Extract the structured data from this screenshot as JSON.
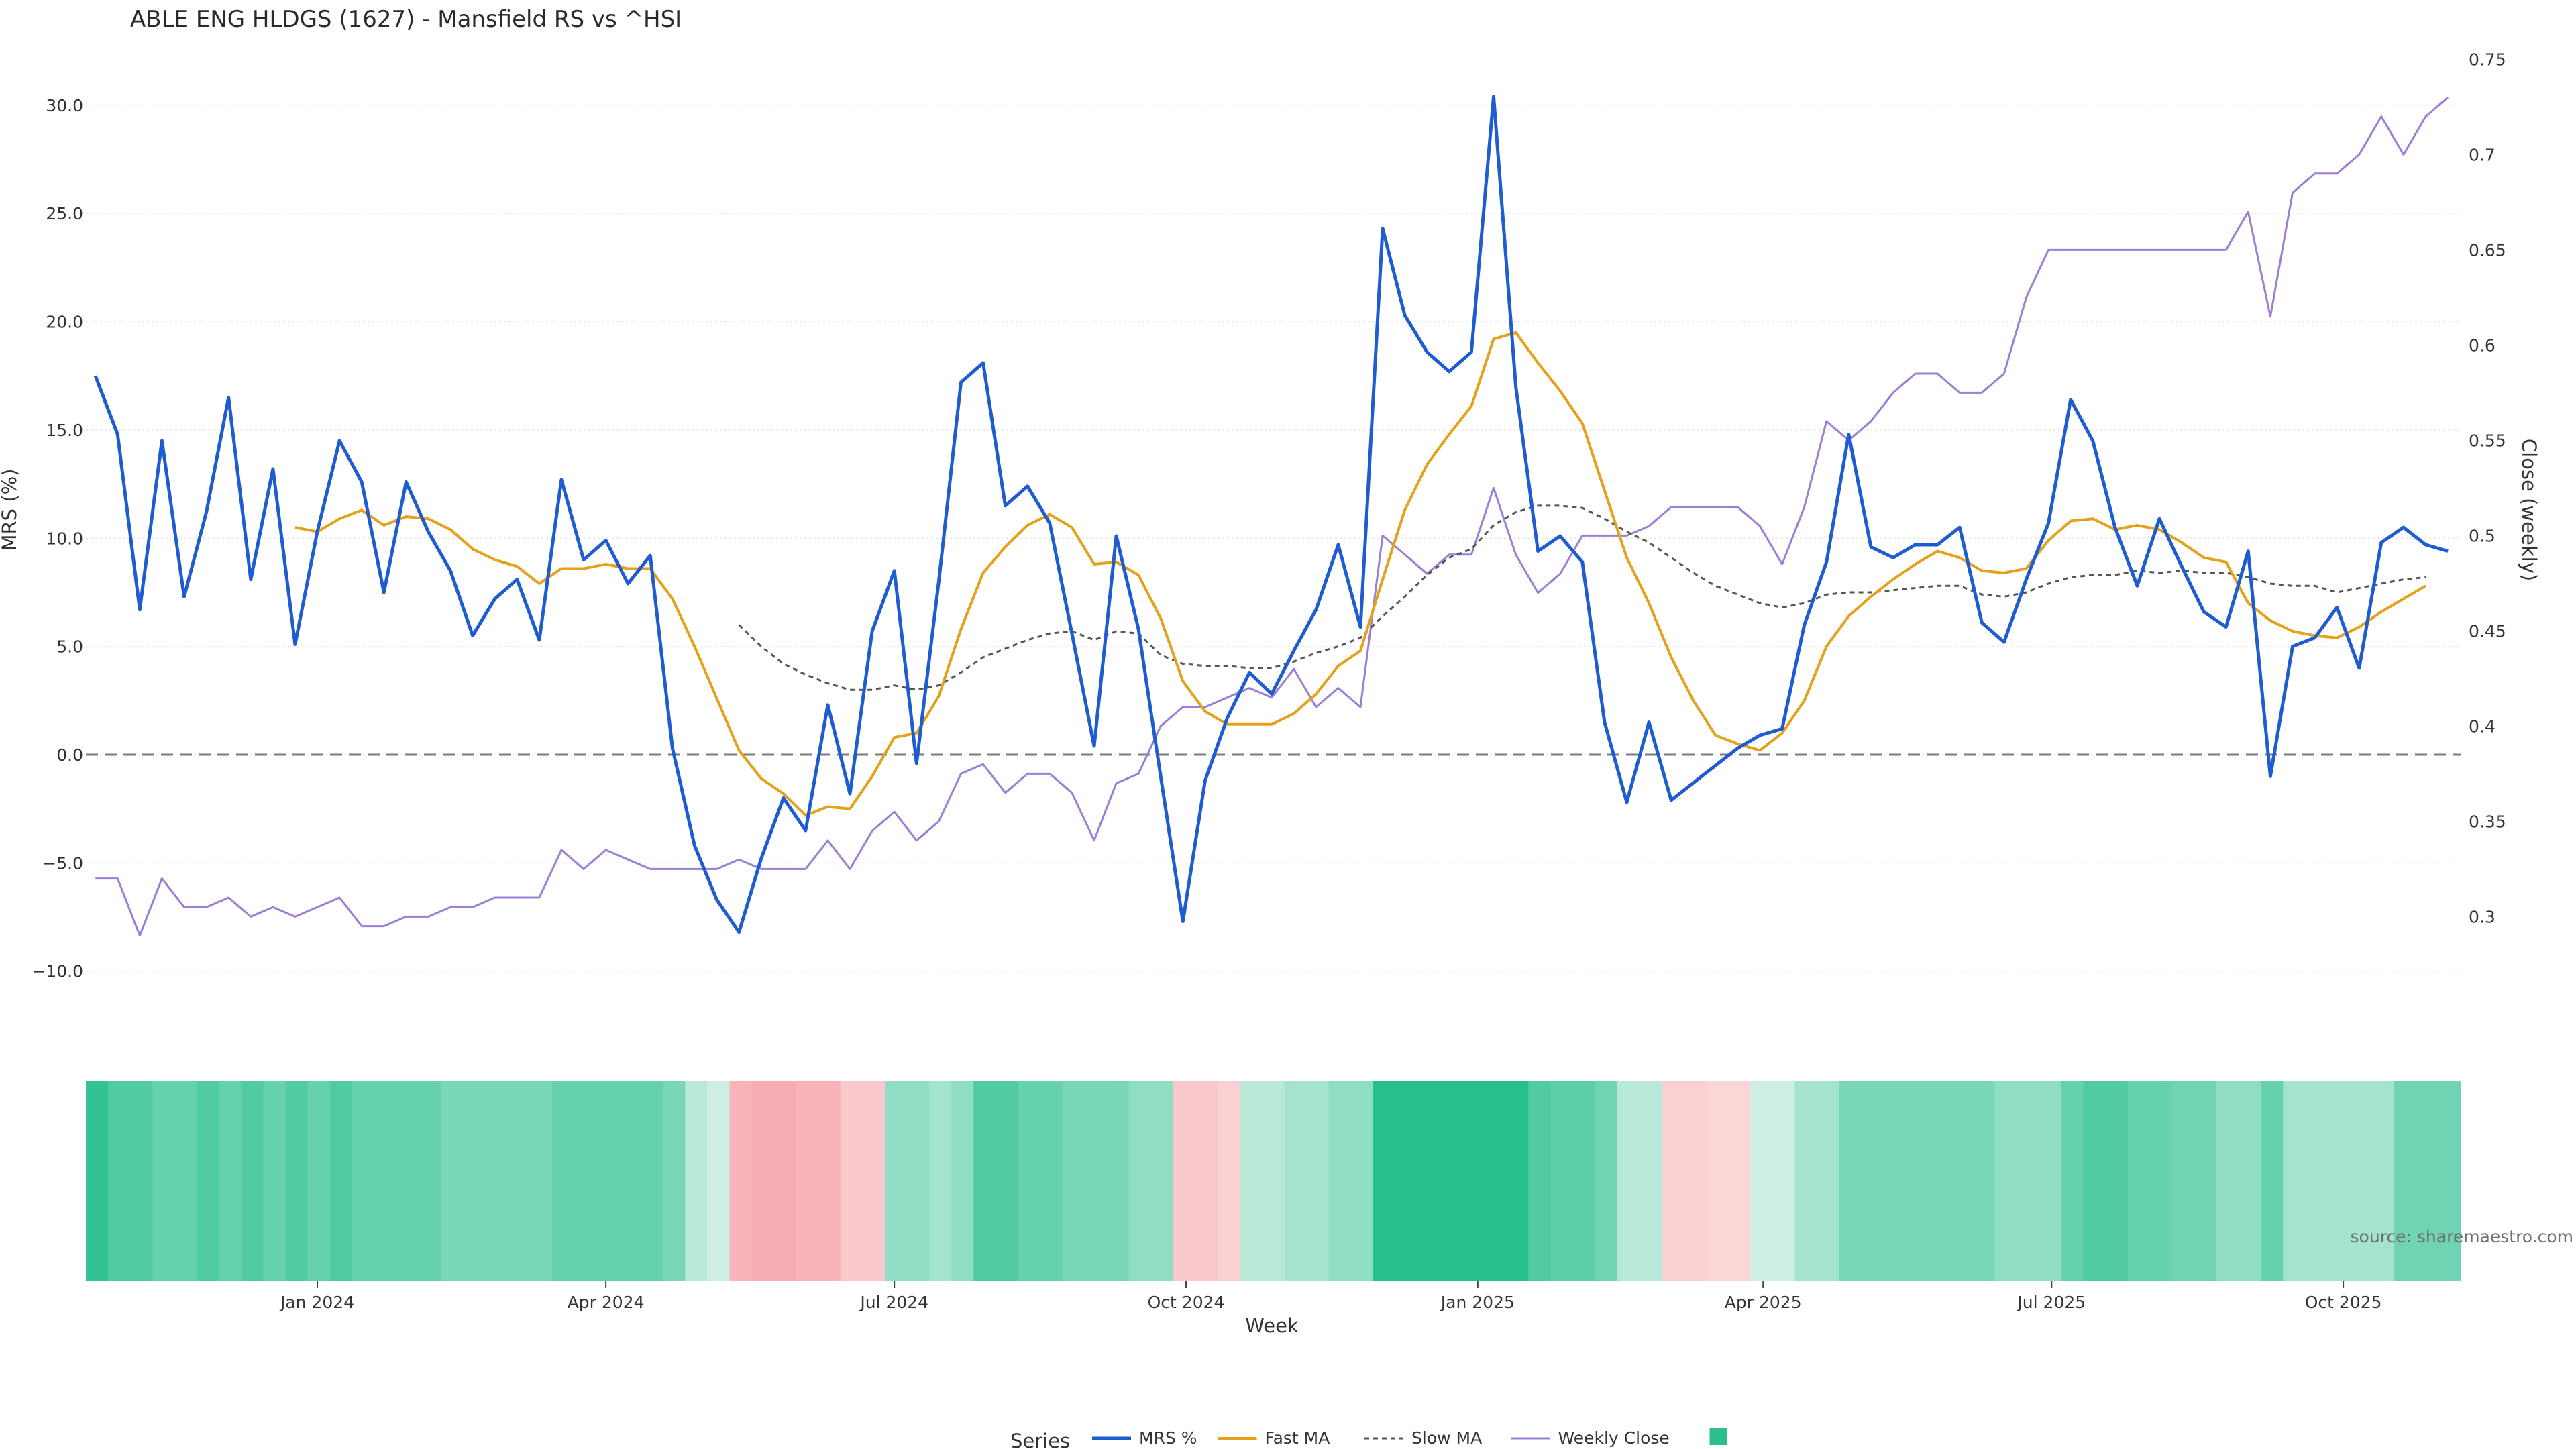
{
  "chart_data": {
    "type": "line",
    "title": "ABLE ENG HLDGS (1627) - Mansfield RS vs ^HSI",
    "xlabel": "Week",
    "ylabel": "MRS (%)",
    "y2label": "Close (weekly)",
    "ylim": [
      -11,
      33
    ],
    "y2lim": [
      0.26,
      0.76
    ],
    "y_ticks": [
      "30.0",
      "25.0",
      "20.0",
      "15.0",
      "10.0",
      "5.0",
      "0.0",
      "−5.0",
      "−10.0"
    ],
    "y_tick_values": [
      30,
      25,
      20,
      15,
      10,
      5,
      0,
      -5,
      -10
    ],
    "y2_ticks": [
      "0.75",
      "0.7",
      "0.65",
      "0.6",
      "0.55",
      "0.5",
      "0.45",
      "0.4",
      "0.35",
      "0.3"
    ],
    "y2_tick_values": [
      0.75,
      0.7,
      0.65,
      0.6,
      0.55,
      0.5,
      0.45,
      0.4,
      0.35,
      0.3
    ],
    "x_range": [
      "2023-10-20",
      "2025-11-07"
    ],
    "x_ticks": [
      {
        "label": "Jan 2024",
        "date": "2024-01-01"
      },
      {
        "label": "Apr 2024",
        "date": "2024-04-01"
      },
      {
        "label": "Jul 2024",
        "date": "2024-07-01"
      },
      {
        "label": "Oct 2024",
        "date": "2024-10-01"
      },
      {
        "label": "Jan 2025",
        "date": "2025-01-01"
      },
      {
        "label": "Apr 2025",
        "date": "2025-04-01"
      },
      {
        "label": "Jul 2025",
        "date": "2025-07-01"
      },
      {
        "label": "Oct 2025",
        "date": "2025-10-01"
      }
    ],
    "start_week": "2023-10-23",
    "grid": true,
    "legend_position": "bottom-center",
    "legend_title": "Series",
    "colors": {
      "mrs": "#1f5bd1",
      "fast": "#e3a21a",
      "slow": "#555555",
      "close": "#9b7fd4",
      "zero": "#7a7a7a",
      "heat_legend": "#2bbf8e"
    },
    "series": [
      {
        "name": "MRS %",
        "values": [
          17.5,
          14.8,
          6.7,
          14.5,
          7.3,
          11.2,
          16.5,
          8.1,
          13.2,
          5.1,
          10.3,
          14.5,
          12.6,
          7.5,
          12.6,
          10.3,
          8.5,
          5.5,
          7.2,
          8.1,
          5.3,
          12.7,
          9.0,
          9.9,
          7.9,
          9.2,
          0.3,
          -4.2,
          -6.7,
          -8.2,
          -4.8,
          -2.0,
          -3.5,
          2.3,
          -1.8,
          5.7,
          8.5,
          -0.4,
          8.0,
          17.2,
          18.1,
          11.5,
          12.4,
          10.7,
          5.6,
          0.4,
          10.1,
          5.8,
          -1.0,
          -7.7,
          -1.2,
          1.7,
          3.8,
          2.8,
          4.8,
          6.7,
          9.7,
          5.9,
          24.3,
          20.3,
          18.6,
          17.7,
          18.6,
          30.4,
          17.0,
          9.4,
          10.1,
          8.9,
          1.5,
          -2.2,
          1.5,
          -2.1,
          -1.3,
          -0.5,
          0.3,
          0.9,
          1.2,
          6.0,
          8.9,
          14.8,
          9.6,
          9.1,
          9.7,
          9.7,
          10.5,
          6.1,
          5.2,
          8.1,
          10.7,
          16.4,
          14.5,
          10.5,
          7.8,
          10.9,
          8.7,
          6.6,
          5.9,
          9.4,
          -1.0,
          5.0,
          5.4,
          6.8,
          4.0,
          9.8,
          10.5,
          9.7,
          9.4
        ]
      },
      {
        "name": "Fast MA",
        "values": [
          null,
          null,
          null,
          null,
          null,
          null,
          null,
          null,
          null,
          10.5,
          10.3,
          10.9,
          11.3,
          10.6,
          11.0,
          10.9,
          10.4,
          9.5,
          9.0,
          8.7,
          7.9,
          8.6,
          8.6,
          8.8,
          8.6,
          8.6,
          7.2,
          5.0,
          2.6,
          0.2,
          -1.1,
          -1.8,
          -2.8,
          -2.4,
          -2.5,
          -1.0,
          0.8,
          1.0,
          2.7,
          5.8,
          8.4,
          9.6,
          10.6,
          11.1,
          10.5,
          8.8,
          8.9,
          8.3,
          6.3,
          3.4,
          2.0,
          1.4,
          1.4,
          1.4,
          1.9,
          2.8,
          4.1,
          4.8,
          8.1,
          11.3,
          13.4,
          14.8,
          16.1,
          19.2,
          19.5,
          18.1,
          16.8,
          15.3,
          12.2,
          9.1,
          7.0,
          4.5,
          2.5,
          0.9,
          0.5,
          0.2,
          1.0,
          2.5,
          5.0,
          6.4,
          7.3,
          8.1,
          8.8,
          9.4,
          9.1,
          8.5,
          8.4,
          8.6,
          9.9,
          10.8,
          10.9,
          10.4,
          10.6,
          10.4,
          9.8,
          9.1,
          8.9,
          7.0,
          6.2,
          5.7,
          5.5,
          5.4,
          5.9,
          6.6,
          7.2,
          7.8
        ]
      },
      {
        "name": "Slow MA",
        "values": [
          null,
          null,
          null,
          null,
          null,
          null,
          null,
          null,
          null,
          null,
          null,
          null,
          null,
          null,
          null,
          null,
          null,
          null,
          null,
          null,
          null,
          null,
          null,
          null,
          null,
          null,
          null,
          null,
          null,
          6.0,
          5.0,
          4.2,
          3.7,
          3.3,
          3.0,
          3.0,
          3.2,
          3.0,
          3.2,
          3.8,
          4.5,
          4.9,
          5.3,
          5.6,
          5.7,
          5.3,
          5.7,
          5.6,
          4.6,
          4.2,
          4.1,
          4.1,
          4.0,
          4.0,
          4.3,
          4.7,
          5.0,
          5.4,
          6.4,
          7.3,
          8.3,
          9.1,
          9.5,
          10.6,
          11.2,
          11.5,
          11.5,
          11.4,
          10.9,
          10.3,
          9.8,
          9.1,
          8.4,
          7.8,
          7.4,
          7.0,
          6.8,
          7.0,
          7.4,
          7.5,
          7.5,
          7.6,
          7.7,
          7.8,
          7.8,
          7.4,
          7.3,
          7.5,
          7.9,
          8.2,
          8.3,
          8.3,
          8.5,
          8.4,
          8.5,
          8.4,
          8.4,
          8.2,
          7.9,
          7.8,
          7.8,
          7.5,
          7.7,
          7.9,
          8.1,
          8.2
        ]
      },
      {
        "name": "Weekly Close",
        "axis": "right",
        "values": [
          0.32,
          0.32,
          0.29,
          0.32,
          0.305,
          0.305,
          0.31,
          0.3,
          0.305,
          0.3,
          0.305,
          0.31,
          0.295,
          0.295,
          0.3,
          0.3,
          0.305,
          0.305,
          0.31,
          0.31,
          0.31,
          0.335,
          0.325,
          0.335,
          0.33,
          0.325,
          0.325,
          0.325,
          0.325,
          0.33,
          0.325,
          0.325,
          0.325,
          0.34,
          0.325,
          0.345,
          0.355,
          0.34,
          0.35,
          0.375,
          0.38,
          0.365,
          0.375,
          0.375,
          0.365,
          0.34,
          0.37,
          0.375,
          0.4,
          0.41,
          0.41,
          0.415,
          0.42,
          0.415,
          0.43,
          0.41,
          0.42,
          0.41,
          0.5,
          0.49,
          0.48,
          0.49,
          0.49,
          0.525,
          0.49,
          0.47,
          0.48,
          0.5,
          0.5,
          0.5,
          0.505,
          0.515,
          0.515,
          0.515,
          0.515,
          0.505,
          0.485,
          0.515,
          0.56,
          0.55,
          0.56,
          0.575,
          0.585,
          0.585,
          0.575,
          0.575,
          0.585,
          0.625,
          0.65,
          0.65,
          0.65,
          0.65,
          0.65,
          0.65,
          0.65,
          0.65,
          0.65,
          0.67,
          0.615,
          0.68,
          0.69,
          0.69,
          0.7,
          0.72,
          0.7,
          0.72,
          0.73
        ]
      }
    ],
    "heat_strip": [
      8.5,
      7.0,
      7.0,
      6.0,
      6.0,
      7.0,
      6.0,
      7.0,
      6.0,
      7.0,
      6.0,
      7.0,
      6.0,
      6.0,
      6.0,
      6.0,
      5.0,
      5.0,
      5.0,
      5.0,
      5.0,
      6.0,
      6.0,
      6.0,
      6.0,
      6.0,
      5.0,
      2.0,
      1.0,
      -5.0,
      -6.0,
      -6.0,
      -5.0,
      -5.0,
      -3.0,
      -3.0,
      4.0,
      4.0,
      3.0,
      4.0,
      7.0,
      7.0,
      6.0,
      6.0,
      5.0,
      5.0,
      5.0,
      4.0,
      4.0,
      -3.0,
      -3.0,
      -2.0,
      2.0,
      2.0,
      3.0,
      3.0,
      4.0,
      4.0,
      9.0,
      9.0,
      9.0,
      9.0,
      9.0,
      9.0,
      9.0,
      7.0,
      6.5,
      6.5,
      5.5,
      2.0,
      2.0,
      -2.0,
      -2.0,
      -1.5,
      -1.5,
      1.0,
      1.0,
      3.0,
      3.0,
      5.0,
      5.0,
      5.0,
      5.0,
      5.0,
      5.0,
      5.0,
      4.0,
      4.0,
      4.0,
      6.0,
      7.0,
      7.0,
      6.0,
      6.0,
      5.5,
      5.5,
      4.0,
      4.0,
      6.0,
      3.0,
      3.0,
      3.0,
      3.0,
      3.0,
      5.5,
      5.5,
      5.5
    ],
    "source": "source: sharemaestro.com"
  }
}
